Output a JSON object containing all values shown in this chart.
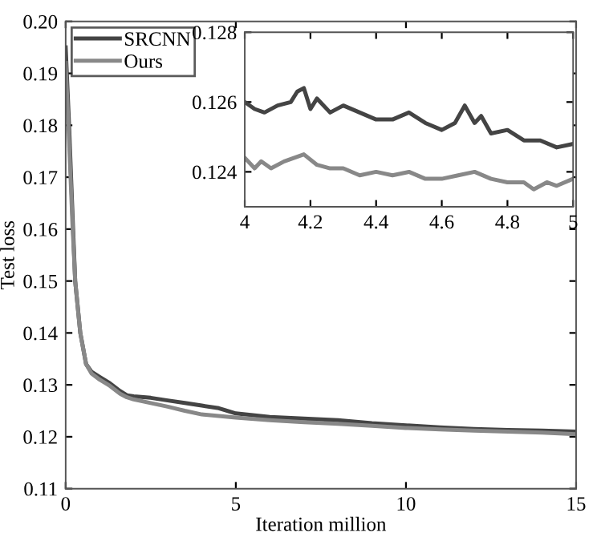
{
  "chart_data": [
    {
      "type": "line",
      "xlabel": "Iteration million",
      "ylabel": "Test loss",
      "xlim": [
        0,
        15
      ],
      "ylim": [
        0.11,
        0.2
      ],
      "xticks": [
        0,
        5,
        10,
        15
      ],
      "yticks": [
        {
          "value": 0.11,
          "label": "0.11"
        },
        {
          "value": 0.12,
          "label": "0.12"
        },
        {
          "value": 0.13,
          "label": "0.13"
        },
        {
          "value": 0.14,
          "label": "0.14"
        },
        {
          "value": 0.15,
          "label": "0.15"
        },
        {
          "value": 0.16,
          "label": "0.16"
        },
        {
          "value": 0.17,
          "label": "0.17"
        },
        {
          "value": 0.18,
          "label": "0.18"
        },
        {
          "value": 0.19,
          "label": "0.19"
        },
        {
          "value": 0.2,
          "label": "0.20"
        }
      ],
      "grid": false,
      "legend": "top left",
      "series": [
        {
          "name": "SRCNN",
          "color": "#444444",
          "x": [
            0,
            0.1,
            0.2,
            0.28,
            0.43,
            0.6,
            0.76,
            1,
            1.3,
            1.6,
            1.8,
            2,
            2.5,
            3,
            3.5,
            4,
            4.5,
            5,
            6,
            7,
            8,
            9,
            10,
            11,
            12,
            13,
            14,
            15
          ],
          "values": [
            0.195,
            0.18,
            0.163,
            0.15,
            0.14,
            0.134,
            0.1325,
            0.1315,
            0.1303,
            0.1288,
            0.128,
            0.1278,
            0.1275,
            0.127,
            0.1265,
            0.126,
            0.1255,
            0.1245,
            0.1238,
            0.1235,
            0.1232,
            0.1226,
            0.1222,
            0.1218,
            0.1215,
            0.1213,
            0.1212,
            0.121
          ]
        },
        {
          "name": "Ours",
          "color": "#888888",
          "x": [
            0,
            0.1,
            0.2,
            0.28,
            0.43,
            0.6,
            0.76,
            1,
            1.3,
            1.6,
            1.8,
            2,
            2.5,
            3,
            3.5,
            4,
            4.5,
            5,
            6,
            7,
            8,
            9,
            10,
            11,
            12,
            13,
            14,
            15
          ],
          "values": [
            0.192,
            0.177,
            0.161,
            0.15,
            0.14,
            0.134,
            0.1322,
            0.131,
            0.1298,
            0.1283,
            0.1276,
            0.1272,
            0.1265,
            0.1258,
            0.125,
            0.1243,
            0.124,
            0.1237,
            0.1232,
            0.1228,
            0.1225,
            0.1221,
            0.1217,
            0.1214,
            0.1212,
            0.121,
            0.1208,
            0.1205
          ]
        }
      ]
    },
    {
      "type": "line",
      "xlim": [
        4,
        5
      ],
      "ylim": [
        0.123,
        0.128
      ],
      "xticks": [
        4,
        4.2,
        4.4,
        4.6,
        4.8,
        5
      ],
      "yticks": [
        {
          "value": 0.124,
          "label": "0.124"
        },
        {
          "value": 0.126,
          "label": "0.126"
        },
        {
          "value": 0.128,
          "label": "0.128"
        }
      ],
      "grid": false,
      "series": [
        {
          "color": "#444444",
          "x": [
            4,
            4.03,
            4.06,
            4.1,
            4.14,
            4.16,
            4.18,
            4.2,
            4.22,
            4.26,
            4.3,
            4.35,
            4.4,
            4.45,
            4.5,
            4.55,
            4.6,
            4.64,
            4.67,
            4.7,
            4.72,
            4.75,
            4.8,
            4.85,
            4.9,
            4.95,
            5
          ],
          "values": [
            0.126,
            0.1258,
            0.1257,
            0.1259,
            0.126,
            0.1263,
            0.1264,
            0.1258,
            0.1261,
            0.1257,
            0.1259,
            0.1257,
            0.1255,
            0.1255,
            0.1257,
            0.1254,
            0.1252,
            0.1254,
            0.1259,
            0.1254,
            0.1256,
            0.1251,
            0.1252,
            0.1249,
            0.1249,
            0.1247,
            0.1248
          ]
        },
        {
          "color": "#888888",
          "x": [
            4,
            4.03,
            4.05,
            4.08,
            4.12,
            4.18,
            4.22,
            4.26,
            4.3,
            4.35,
            4.4,
            4.45,
            4.5,
            4.55,
            4.6,
            4.65,
            4.7,
            4.75,
            4.8,
            4.85,
            4.88,
            4.92,
            4.95,
            5
          ],
          "values": [
            0.1244,
            0.1241,
            0.1243,
            0.1241,
            0.1243,
            0.1245,
            0.1242,
            0.1241,
            0.1241,
            0.1239,
            0.124,
            0.1239,
            0.124,
            0.1238,
            0.1238,
            0.1239,
            0.124,
            0.1238,
            0.1237,
            0.1237,
            0.1235,
            0.1237,
            0.1236,
            0.1238
          ]
        }
      ]
    }
  ]
}
